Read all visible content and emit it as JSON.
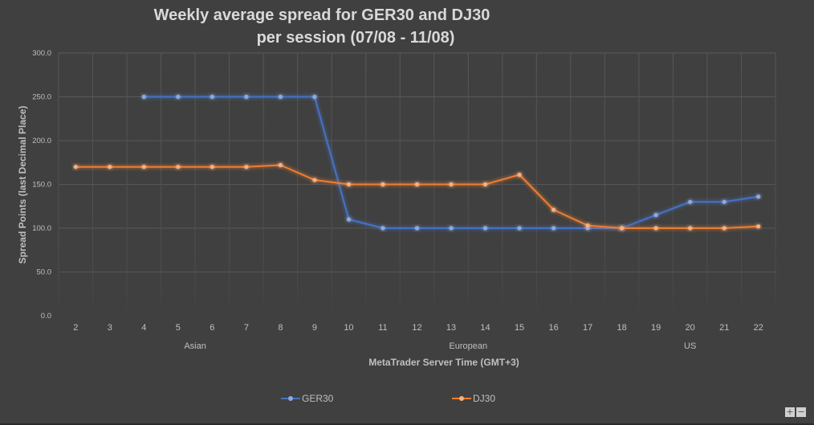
{
  "chart_data": {
    "type": "line",
    "title": "Weekly average spread for GER30 and DJ30",
    "subtitle": "per session (07/08 - 11/08)",
    "xlabel": "MetaTrader Server Time (GMT+3)",
    "ylabel": "Spread Points  (last Decimal Place)",
    "x": [
      "2",
      "3",
      "4",
      "5",
      "6",
      "7",
      "8",
      "9",
      "10",
      "11",
      "12",
      "13",
      "14",
      "15",
      "16",
      "17",
      "18",
      "19",
      "20",
      "21",
      "22"
    ],
    "x_groups": [
      {
        "label": "Asian",
        "from": "2",
        "to": "9"
      },
      {
        "label": "European",
        "from": "10",
        "to": "17"
      },
      {
        "label": "US",
        "from": "18",
        "to": "22"
      }
    ],
    "ylim": [
      0,
      300
    ],
    "yticks": [
      "0.0",
      "50.0",
      "100.0",
      "150.0",
      "200.0",
      "250.0",
      "300.0"
    ],
    "grid": true,
    "legend_position": "bottom",
    "series": [
      {
        "name": "GER30",
        "color": "#4472c4",
        "values": [
          null,
          null,
          250,
          250,
          250,
          250,
          250,
          250,
          110,
          100,
          100,
          100,
          100,
          100,
          100,
          100,
          100,
          115,
          130,
          130,
          136
        ]
      },
      {
        "name": "DJ30",
        "color": "#ed7d31",
        "values": [
          170,
          170,
          170,
          170,
          170,
          170,
          172,
          155,
          150,
          150,
          150,
          150,
          150,
          161,
          121,
          103,
          100,
          100,
          100,
          100,
          102
        ]
      }
    ]
  },
  "controls": {
    "zoom_in": "+",
    "zoom_out": "−"
  }
}
